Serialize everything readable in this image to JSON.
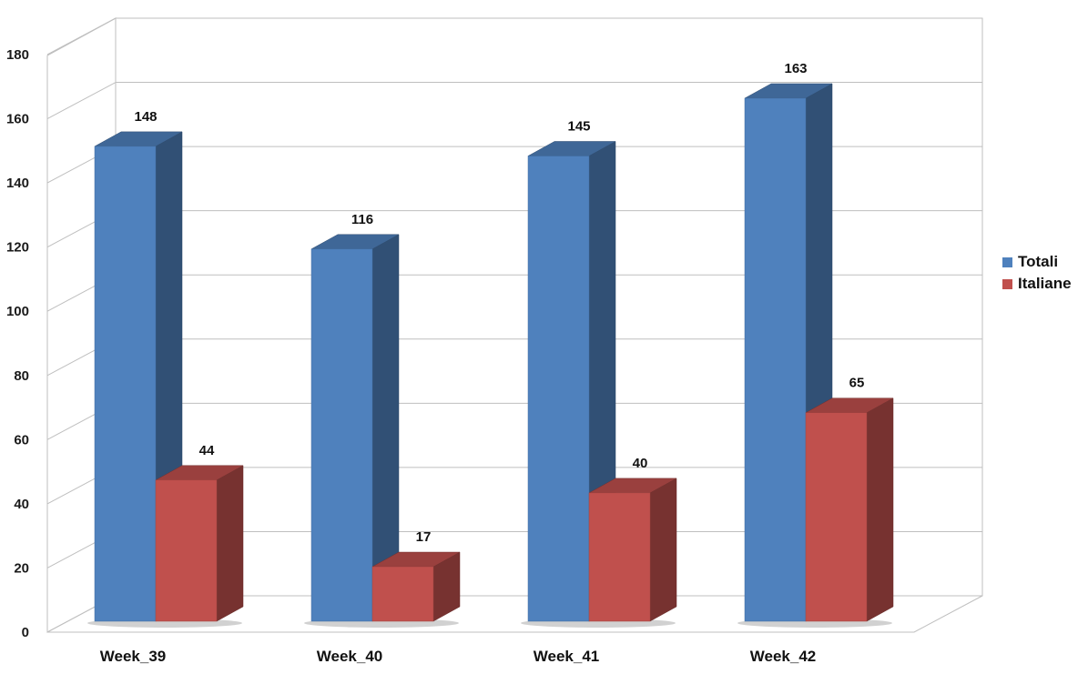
{
  "chart_data": {
    "type": "bar",
    "style": "3d-clustered-column",
    "categories": [
      "Week_39",
      "Week_40",
      "Week_41",
      "Week_42"
    ],
    "series": [
      {
        "name": "Totali",
        "values": [
          148,
          116,
          145,
          163
        ],
        "color": "#4F81BD"
      },
      {
        "name": "Italiane",
        "values": [
          44,
          17,
          40,
          65
        ],
        "color": "#C0504D"
      }
    ],
    "title": "",
    "xlabel": "",
    "ylabel": "",
    "ylim": [
      0,
      180
    ],
    "yticks": [
      0,
      20,
      40,
      60,
      80,
      100,
      120,
      140,
      160,
      180
    ],
    "grid": true,
    "legend_position": "right",
    "data_labels": true
  }
}
